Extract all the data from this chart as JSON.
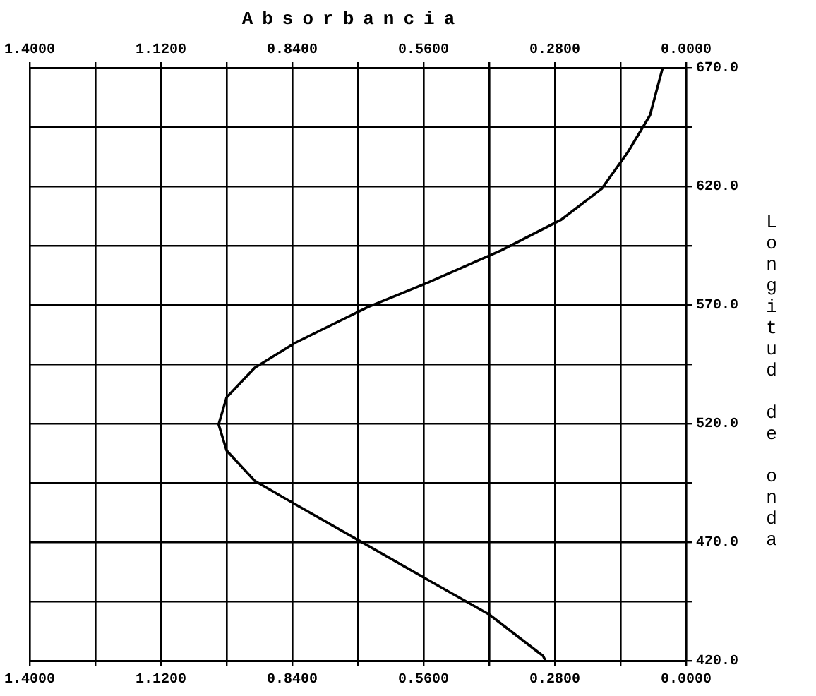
{
  "chart_data": {
    "type": "line",
    "title": "Absorbancia",
    "ylabel": "Longitud de onda",
    "series": [
      {
        "color": "#000000",
        "x": [
          0.05,
          0.077,
          0.124,
          0.18,
          0.266,
          0.394,
          0.55,
          0.68,
          0.834,
          0.92,
          0.98,
          0.997,
          0.98,
          0.92,
          0.834,
          0.698,
          0.55,
          0.42,
          0.305,
          0.3
        ],
        "values": [
          670,
          650,
          634.5,
          619,
          606,
          593,
          579.5,
          569,
          554,
          543.5,
          531,
          519.6,
          508.6,
          495.8,
          486,
          470.7,
          454,
          439.5,
          422,
          420
        ]
      }
    ],
    "xlim": [
      1.4,
      0
    ],
    "xticks": [
      {
        "value": 1.4,
        "label": "1.4000"
      },
      {
        "value": 1.26,
        "label": null
      },
      {
        "value": 1.12,
        "label": "1.1200"
      },
      {
        "value": 0.98,
        "label": null
      },
      {
        "value": 0.84,
        "label": "0.8400"
      },
      {
        "value": 0.7,
        "label": null
      },
      {
        "value": 0.56,
        "label": "0.5600"
      },
      {
        "value": 0.42,
        "label": null
      },
      {
        "value": 0.28,
        "label": "0.2800"
      },
      {
        "value": 0.14,
        "label": null
      },
      {
        "value": 0,
        "label": "0.0000"
      }
    ],
    "x2lim": [
      1.4,
      0
    ],
    "x2ticks": [
      {
        "value": 1.4,
        "label": "1.4000"
      },
      {
        "value": 1.26,
        "label": null
      },
      {
        "value": 1.12,
        "label": "1.1200"
      },
      {
        "value": 0.98,
        "label": null
      },
      {
        "value": 0.84,
        "label": "0.8400"
      },
      {
        "value": 0.7,
        "label": null
      },
      {
        "value": 0.56,
        "label": "0.5600"
      },
      {
        "value": 0.42,
        "label": null
      },
      {
        "value": 0.28,
        "label": "0.2800"
      },
      {
        "value": 0.14,
        "label": null
      },
      {
        "value": 0,
        "label": "0.0000"
      }
    ],
    "ylim": [
      420,
      670
    ],
    "yticks": [
      {
        "value": 420,
        "label": "420.0"
      },
      {
        "value": 445,
        "label": null
      },
      {
        "value": 470,
        "label": "470.0"
      },
      {
        "value": 495,
        "label": null
      },
      {
        "value": 520,
        "label": "520.0"
      },
      {
        "value": 545,
        "label": null
      },
      {
        "value": 570,
        "label": "570.0"
      },
      {
        "value": 595,
        "label": null
      },
      {
        "value": 620,
        "label": "620.0"
      },
      {
        "value": 645,
        "label": null
      },
      {
        "value": 670,
        "label": "670.0"
      }
    ],
    "grid": true,
    "legend": false,
    "marker": "none",
    "line_style": "solid"
  }
}
